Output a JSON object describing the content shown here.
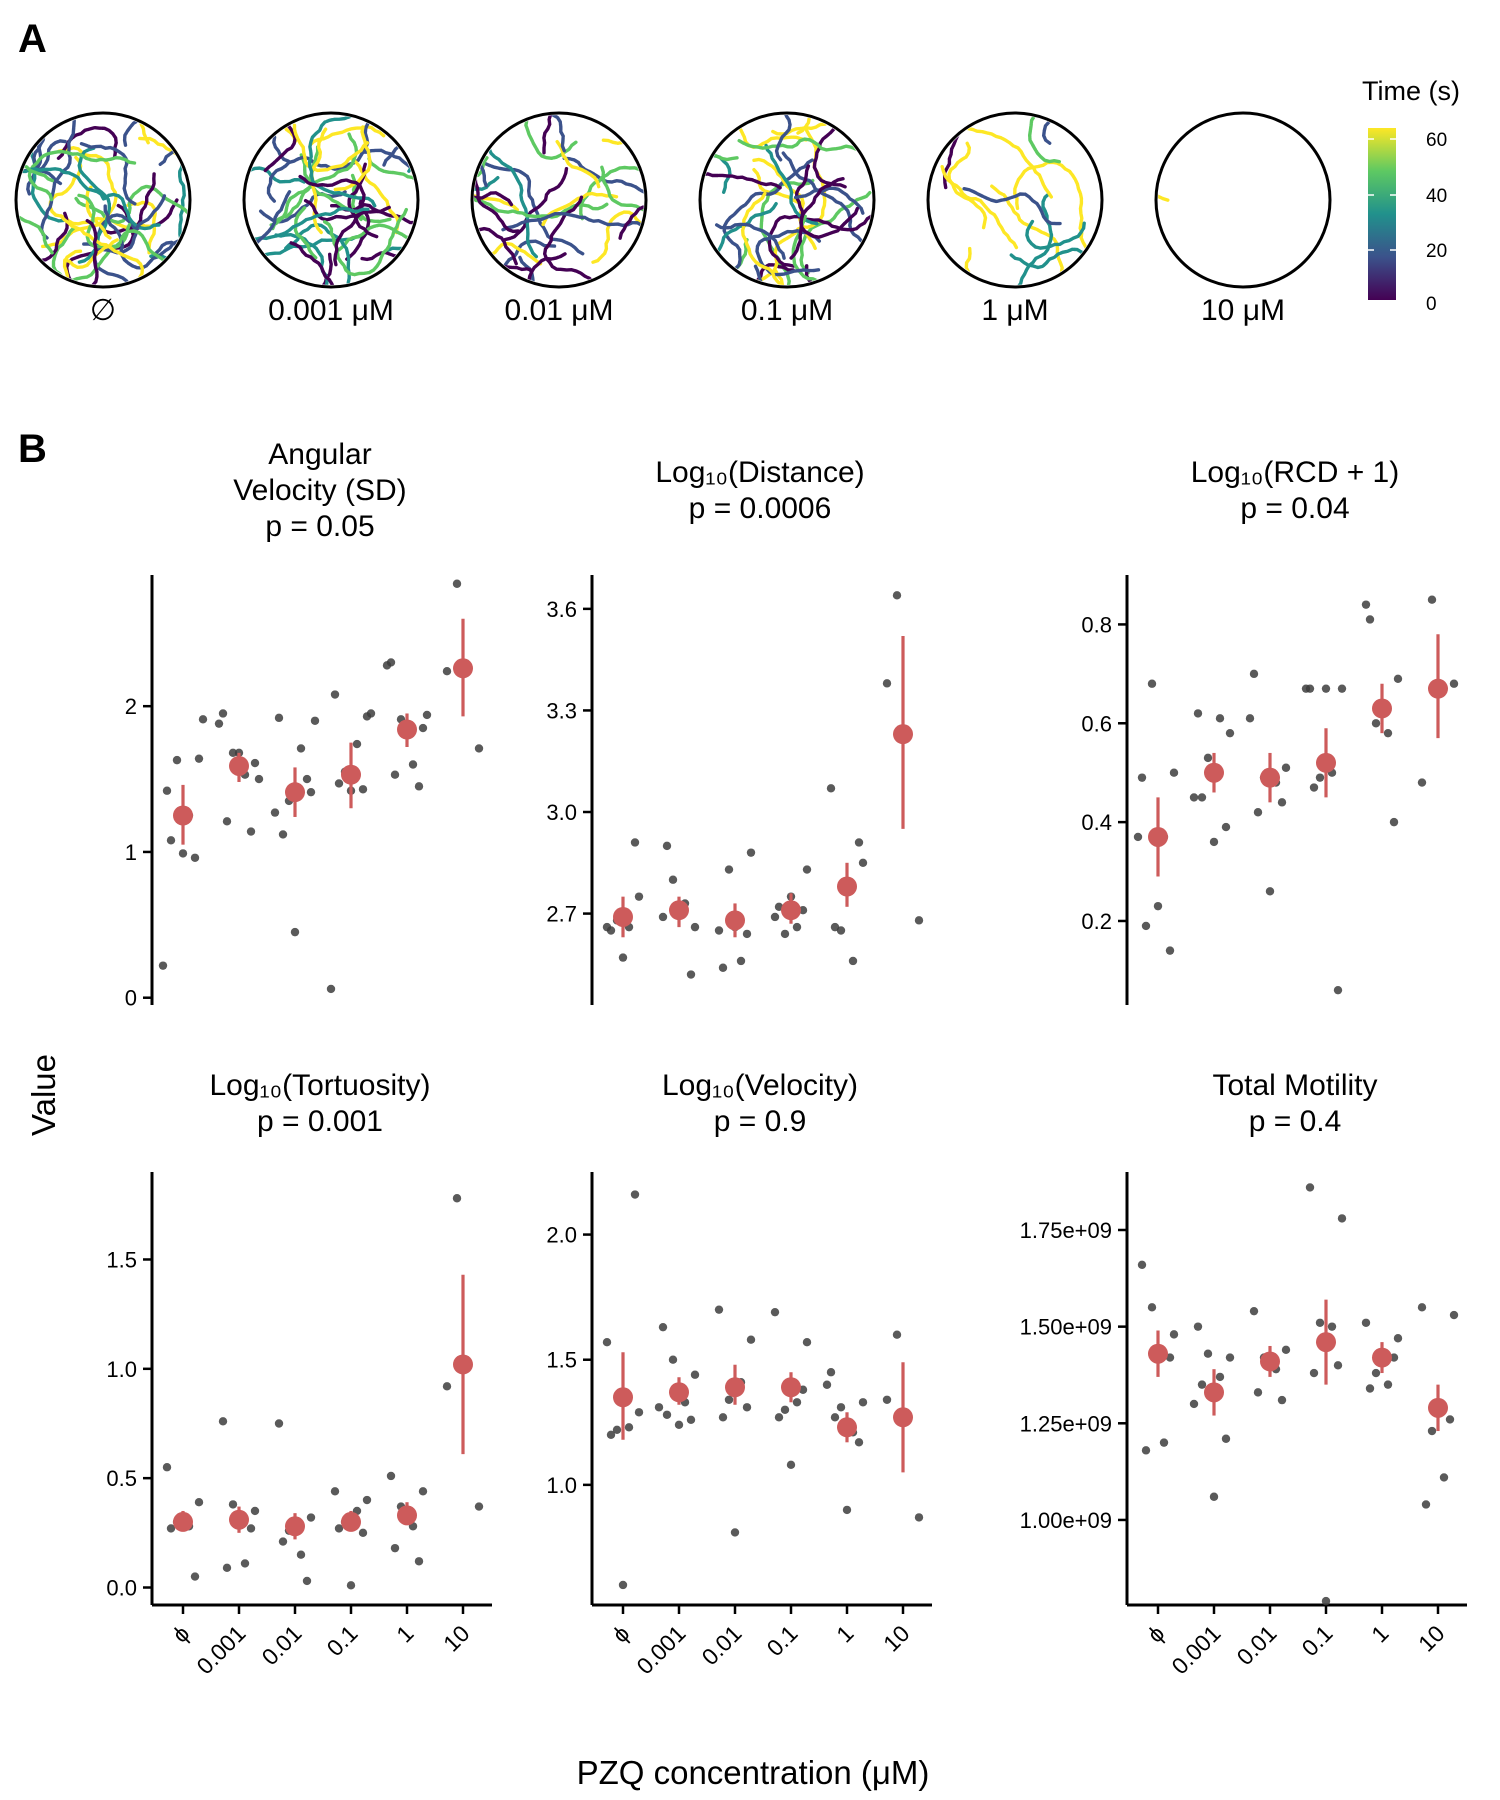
{
  "figure": {
    "panel_a_label": "A",
    "panel_b_label": "B",
    "y_axis_label": "Value",
    "x_axis_label": "PZQ concentration (μM)"
  },
  "panel_a": {
    "wells": [
      {
        "label": "∅",
        "track_density": 1.0
      },
      {
        "label": "0.001 μM",
        "track_density": 1.0
      },
      {
        "label": "0.01 μM",
        "track_density": 0.75
      },
      {
        "label": "0.1 μM",
        "track_density": 0.85
      },
      {
        "label": "1 μM",
        "track_density": 0.35
      },
      {
        "label": "10 μM",
        "track_density": 0.04
      }
    ],
    "legend": {
      "title": "Time (s)",
      "ticks": [
        "60",
        "40",
        "20",
        "0"
      ],
      "colormap": [
        "#440154",
        "#3b528b",
        "#21918c",
        "#5ec962",
        "#fde725"
      ]
    }
  },
  "colors": {
    "points": "#3d3d3d",
    "mean": "#cd5b5b"
  },
  "chart_data": [
    {
      "type": "scatter",
      "title": "Angular\nVelocity (SD)\np = 0.05",
      "categories": [
        "ϕ",
        "0.001",
        "0.01",
        "0.1",
        "1",
        "10"
      ],
      "ylim": [
        -0.05,
        2.9
      ],
      "yticks": [
        0,
        1,
        2
      ],
      "ytick_labels": [
        "0",
        "1",
        "2"
      ],
      "points": [
        [
          1.42,
          1.64,
          1.63,
          1.25,
          1.08,
          0.96,
          0.99,
          0.22,
          1.91
        ],
        [
          1.95,
          1.61,
          1.68,
          1.53,
          1.21,
          1.14,
          1.68,
          1.88,
          1.5
        ],
        [
          1.92,
          1.41,
          1.35,
          1.71,
          1.12,
          1.5,
          0.45,
          1.27,
          1.9
        ],
        [
          2.08,
          1.93,
          1.55,
          1.74,
          1.47,
          1.43,
          1.42,
          0.06,
          1.95
        ],
        [
          2.3,
          1.85,
          1.91,
          1.6,
          1.53,
          1.45,
          1.86,
          2.28,
          1.94
        ],
        [
          2.24,
          1.71,
          2.84
        ]
      ],
      "means": [
        1.25,
        1.59,
        1.41,
        1.53,
        1.84,
        2.26
      ],
      "ci": [
        [
          1.05,
          1.46
        ],
        [
          1.48,
          1.68
        ],
        [
          1.24,
          1.58
        ],
        [
          1.3,
          1.75
        ],
        [
          1.72,
          1.95
        ],
        [
          1.93,
          2.6
        ]
      ]
    },
    {
      "type": "scatter",
      "title": "Log₁₀(Distance)\np = 0.0006",
      "categories": [
        "ϕ",
        "0.001",
        "0.01",
        "0.1",
        "1",
        "10"
      ],
      "ylim": [
        2.43,
        3.7
      ],
      "yticks": [
        2.7,
        3.0,
        3.3,
        3.6
      ],
      "ytick_labels": [
        "2.7",
        "3.0",
        "3.3",
        "3.6"
      ],
      "points": [
        [
          2.66,
          2.75,
          2.68,
          2.66,
          2.65,
          2.91,
          2.57
        ],
        [
          2.69,
          2.66,
          2.8,
          2.73,
          2.9,
          2.52,
          2.7
        ],
        [
          2.65,
          2.88,
          2.83,
          2.56,
          2.54,
          2.64,
          2.66
        ],
        [
          2.69,
          2.83,
          2.64,
          2.66,
          2.72,
          2.71,
          2.75
        ],
        [
          3.07,
          2.85,
          2.65,
          2.56,
          2.66,
          2.91,
          2.78
        ],
        [
          3.38,
          2.68,
          3.64
        ]
      ],
      "means": [
        2.69,
        2.71,
        2.68,
        2.71,
        2.78,
        3.23
      ],
      "ci": [
        [
          2.63,
          2.75
        ],
        [
          2.66,
          2.75
        ],
        [
          2.63,
          2.73
        ],
        [
          2.67,
          2.76
        ],
        [
          2.72,
          2.85
        ],
        [
          2.95,
          3.52
        ]
      ]
    },
    {
      "type": "scatter",
      "title": "Log₁₀(RCD + 1)\np = 0.04",
      "categories": [
        "ϕ",
        "0.001",
        "0.01",
        "0.1",
        "1",
        "10"
      ],
      "ylim": [
        0.03,
        0.9
      ],
      "yticks": [
        0.2,
        0.4,
        0.6,
        0.8
      ],
      "ytick_labels": [
        "0.2",
        "0.4",
        "0.6",
        "0.8"
      ],
      "points": [
        [
          0.49,
          0.5,
          0.68,
          0.37,
          0.19,
          0.14,
          0.23,
          0.37
        ],
        [
          0.62,
          0.58,
          0.53,
          0.61,
          0.45,
          0.39,
          0.36,
          0.45
        ],
        [
          0.7,
          0.51,
          0.49,
          0.48,
          0.42,
          0.44,
          0.26,
          0.61
        ],
        [
          0.67,
          0.67,
          0.49,
          0.5,
          0.47,
          0.06,
          0.67,
          0.67
        ],
        [
          0.84,
          0.69,
          0.6,
          0.58,
          0.81,
          0.4,
          0.62
        ],
        [
          0.48,
          0.68,
          0.85
        ]
      ],
      "means": [
        0.37,
        0.5,
        0.49,
        0.52,
        0.63,
        0.67
      ],
      "ci": [
        [
          0.29,
          0.45
        ],
        [
          0.46,
          0.54
        ],
        [
          0.44,
          0.54
        ],
        [
          0.45,
          0.59
        ],
        [
          0.58,
          0.68
        ],
        [
          0.57,
          0.78
        ]
      ]
    },
    {
      "type": "scatter",
      "title": "Log₁₀(Tortuosity)\np = 0.001",
      "categories": [
        "ϕ",
        "0.001",
        "0.01",
        "0.1",
        "1",
        "10"
      ],
      "ylim": [
        -0.08,
        1.9
      ],
      "yticks": [
        0.0,
        0.5,
        1.0,
        1.5
      ],
      "ytick_labels": [
        "0.0",
        "0.5",
        "1.0",
        "1.5"
      ],
      "points": [
        [
          0.55,
          0.39,
          0.3,
          0.28,
          0.27,
          0.05
        ],
        [
          0.76,
          0.35,
          0.38,
          0.11,
          0.09,
          0.27
        ],
        [
          0.75,
          0.32,
          0.26,
          0.15,
          0.21,
          0.03
        ],
        [
          0.44,
          0.4,
          0.3,
          0.35,
          0.27,
          0.25,
          0.01
        ],
        [
          0.51,
          0.44,
          0.37,
          0.28,
          0.18,
          0.12
        ],
        [
          0.92,
          0.37,
          1.78
        ]
      ],
      "means": [
        0.3,
        0.31,
        0.28,
        0.3,
        0.33,
        1.02
      ],
      "ci": [
        [
          0.26,
          0.35
        ],
        [
          0.25,
          0.37
        ],
        [
          0.22,
          0.34
        ],
        [
          0.26,
          0.35
        ],
        [
          0.29,
          0.39
        ],
        [
          0.61,
          1.43
        ]
      ]
    },
    {
      "type": "scatter",
      "title": "Log₁₀(Velocity)\np = 0.9",
      "categories": [
        "ϕ",
        "0.001",
        "0.01",
        "0.1",
        "1",
        "10"
      ],
      "ylim": [
        0.52,
        2.25
      ],
      "yticks": [
        1.0,
        1.5,
        2.0
      ],
      "ytick_labels": [
        "1.0",
        "1.5",
        "2.0"
      ],
      "points": [
        [
          1.57,
          1.29,
          1.22,
          1.23,
          1.2,
          2.16,
          0.6
        ],
        [
          1.63,
          1.44,
          1.5,
          1.33,
          1.28,
          1.26,
          1.24,
          1.31
        ],
        [
          1.7,
          1.58,
          1.34,
          1.41,
          1.27,
          1.31,
          0.81
        ],
        [
          1.69,
          1.57,
          1.3,
          1.33,
          1.27,
          1.38,
          1.08
        ],
        [
          1.45,
          1.33,
          1.31,
          1.21,
          1.27,
          1.17,
          0.9,
          1.4
        ],
        [
          1.34,
          0.87,
          1.6
        ]
      ],
      "means": [
        1.35,
        1.37,
        1.39,
        1.39,
        1.23,
        1.27
      ],
      "ci": [
        [
          1.18,
          1.53
        ],
        [
          1.32,
          1.43
        ],
        [
          1.32,
          1.48
        ],
        [
          1.33,
          1.45
        ],
        [
          1.17,
          1.29
        ],
        [
          1.05,
          1.49
        ]
      ]
    },
    {
      "type": "scatter",
      "title": "Total Motility\np = 0.4",
      "categories": [
        "ϕ",
        "0.001",
        "0.01",
        "0.1",
        "1",
        "10"
      ],
      "ylim": [
        780000000.0,
        1900000000.0
      ],
      "yticks": [
        1000000000.0,
        1250000000.0,
        1500000000.0,
        1750000000.0
      ],
      "ytick_labels": [
        "1.00e+09",
        "1.25e+09",
        "1.50e+09",
        "1.75e+09"
      ],
      "points": [
        [
          1660000000.0,
          1480000000.0,
          1550000000.0,
          1200000000.0,
          1180000000.0,
          1420000000.0
        ],
        [
          1500000000.0,
          1420000000.0,
          1430000000.0,
          1370000000.0,
          1350000000.0,
          1210000000.0,
          1060000000.0,
          1300000000.0
        ],
        [
          1540000000.0,
          1440000000.0,
          1420000000.0,
          1390000000.0,
          1330000000.0,
          1310000000.0
        ],
        [
          1860000000.0,
          1780000000.0,
          1510000000.0,
          1500000000.0,
          1380000000.0,
          1400000000.0,
          790000000.0
        ],
        [
          1510000000.0,
          1470000000.0,
          1380000000.0,
          1350000000.0,
          1340000000.0,
          1420000000.0
        ],
        [
          1550000000.0,
          1530000000.0,
          1230000000.0,
          1110000000.0,
          1040000000.0,
          1260000000.0
        ]
      ],
      "means": [
        1430000000.0,
        1330000000.0,
        1410000000.0,
        1460000000.0,
        1420000000.0,
        1290000000.0
      ],
      "ci": [
        [
          1370000000.0,
          1490000000.0
        ],
        [
          1270000000.0,
          1390000000.0
        ],
        [
          1370000000.0,
          1450000000.0
        ],
        [
          1350000000.0,
          1570000000.0
        ],
        [
          1380000000.0,
          1460000000.0
        ],
        [
          1230000000.0,
          1350000000.0
        ]
      ]
    }
  ]
}
